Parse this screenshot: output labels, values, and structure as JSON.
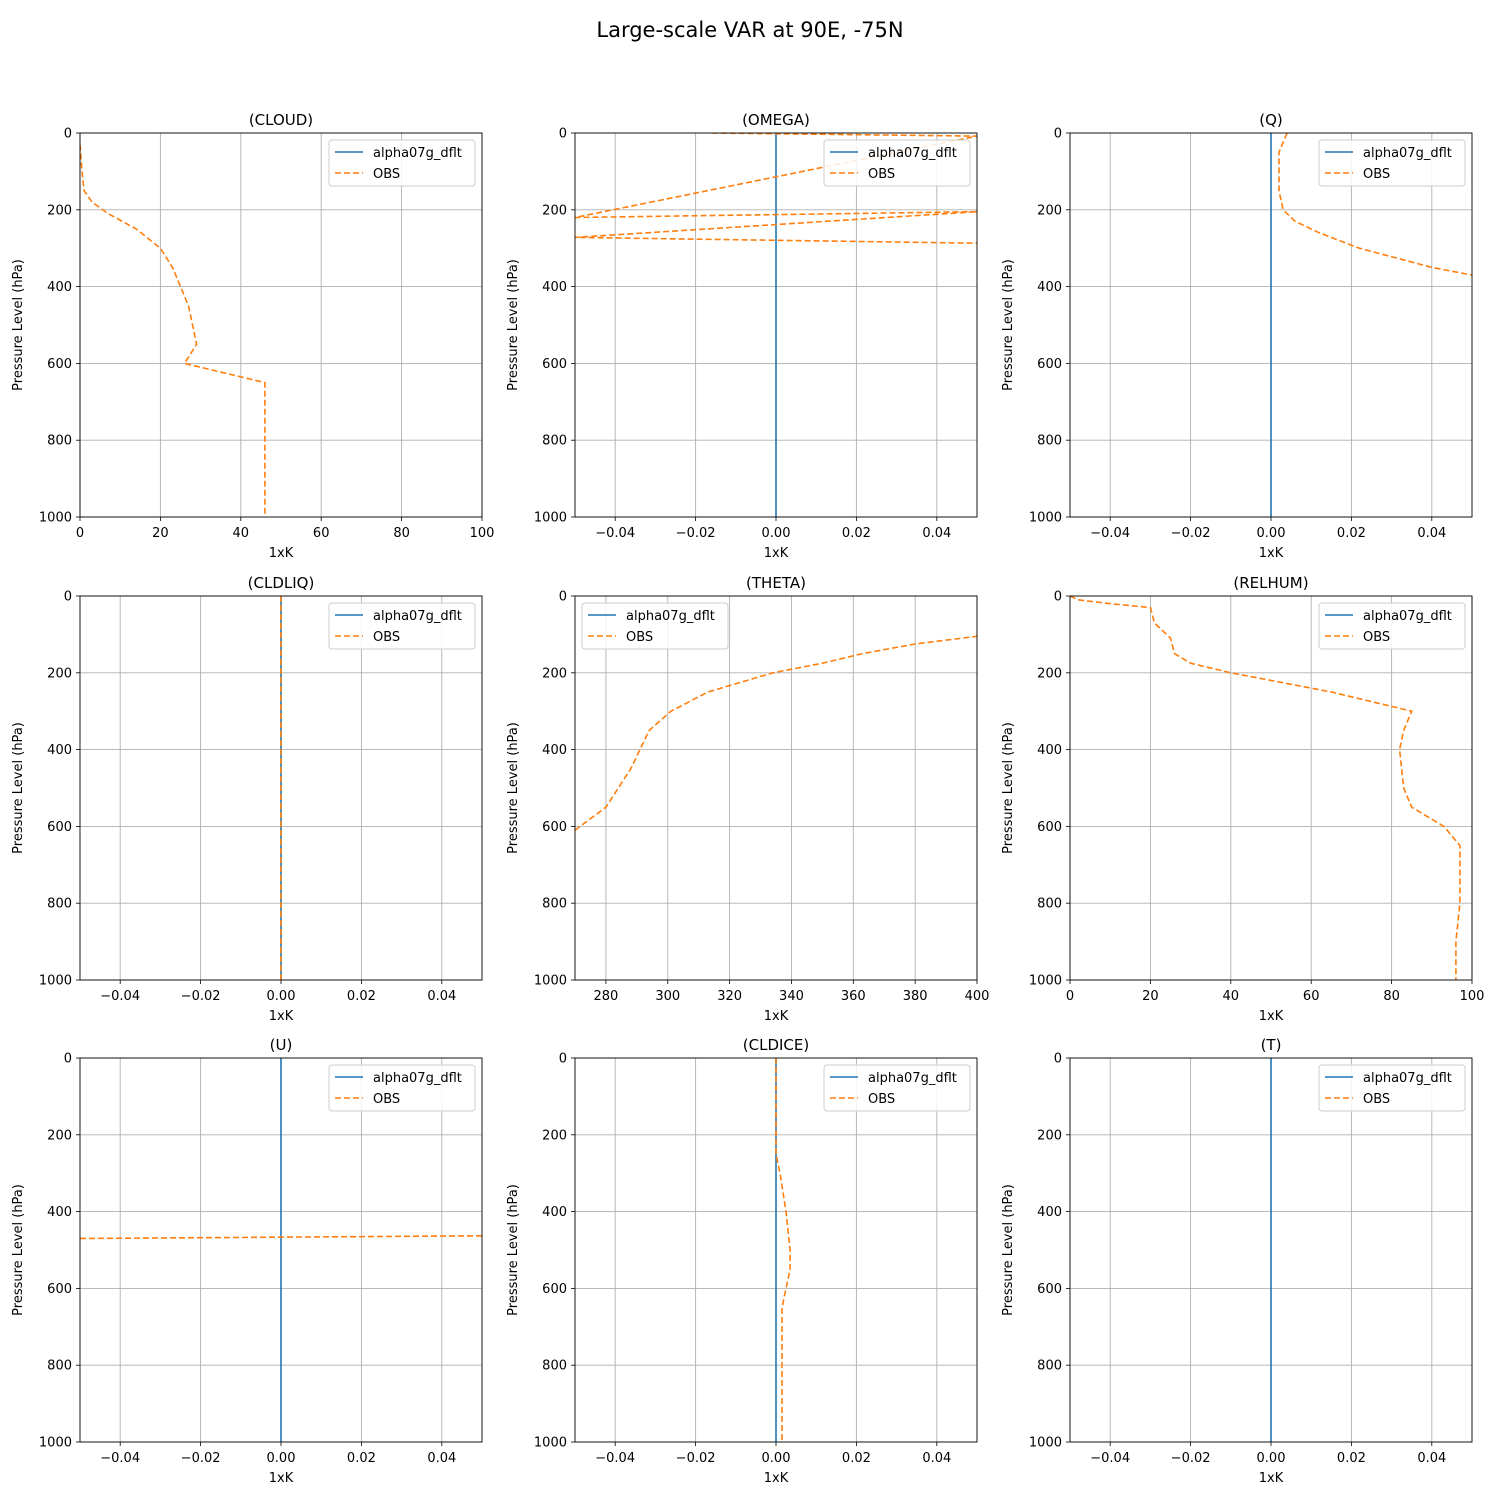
{
  "figure": {
    "suptitle": "Large-scale VAR at 90E, -75N",
    "colors": {
      "model": "#1f77b4",
      "obs": "#ff7f0e",
      "grid": "#b0b0b0"
    }
  },
  "chart_data": [
    {
      "type": "line",
      "title": "(CLOUD)",
      "xlabel": "1xK",
      "ylabel": "Pressure Level (hPa)",
      "xlim": [
        0,
        100
      ],
      "ylim": [
        1000,
        0
      ],
      "y_inverted": true,
      "grid": true,
      "legend": "top-right",
      "xticks": [
        "0",
        "20",
        "40",
        "60",
        "80",
        "100"
      ],
      "yticks": [
        "0",
        "200",
        "400",
        "600",
        "800",
        "1000"
      ],
      "series": [
        {
          "name": "OBS",
          "style": "dashed",
          "x": [
            0,
            0.5,
            1,
            3,
            7,
            14,
            20,
            23,
            27,
            29,
            26,
            46,
            46,
            46
          ],
          "y": [
            30,
            100,
            150,
            180,
            210,
            250,
            300,
            350,
            450,
            550,
            600,
            650,
            800,
            1000
          ]
        }
      ]
    },
    {
      "type": "line",
      "title": "(OMEGA)",
      "xlabel": "1xK",
      "ylabel": "Pressure Level (hPa)",
      "xlim": [
        -0.05,
        0.05
      ],
      "ylim": [
        1000,
        0
      ],
      "y_inverted": true,
      "grid": true,
      "legend": "top-right",
      "xticks": [
        "−0.04",
        "−0.02",
        "0.00",
        "0.02",
        "0.04"
      ],
      "yticks": [
        "0",
        "200",
        "400",
        "600",
        "800",
        "1000"
      ],
      "series": [
        {
          "name": "alpha07g_dflt",
          "style": "solid",
          "x": [
            0,
            0
          ],
          "y": [
            0,
            1000
          ]
        },
        {
          "name": "OBS",
          "style": "dashed",
          "x": [
            -0.016,
            0.05,
            -0.05,
            0.05,
            -0.05,
            0.05
          ],
          "y": [
            0,
            8,
            220,
            205,
            272,
            287
          ]
        }
      ]
    },
    {
      "type": "line",
      "title": "(Q)",
      "xlabel": "1xK",
      "ylabel": "Pressure Level (hPa)",
      "xlim": [
        -0.05,
        0.05
      ],
      "ylim": [
        1000,
        0
      ],
      "y_inverted": true,
      "grid": true,
      "legend": "top-right",
      "xticks": [
        "−0.04",
        "−0.02",
        "0.00",
        "0.02",
        "0.04"
      ],
      "yticks": [
        "0",
        "200",
        "400",
        "600",
        "800",
        "1000"
      ],
      "series": [
        {
          "name": "alpha07g_dflt",
          "style": "solid",
          "x": [
            0,
            0
          ],
          "y": [
            0,
            1000
          ]
        },
        {
          "name": "OBS",
          "style": "dashed",
          "x": [
            0.004,
            0.002,
            0.002,
            0.003,
            0.006,
            0.012,
            0.022,
            0.04,
            0.05
          ],
          "y": [
            0,
            50,
            150,
            200,
            230,
            260,
            300,
            350,
            370
          ]
        }
      ]
    },
    {
      "type": "line",
      "title": "(CLDLIQ)",
      "xlabel": "1xK",
      "ylabel": "Pressure Level (hPa)",
      "xlim": [
        -0.05,
        0.05
      ],
      "ylim": [
        1000,
        0
      ],
      "y_inverted": true,
      "grid": true,
      "legend": "top-right",
      "xticks": [
        "−0.04",
        "−0.02",
        "0.00",
        "0.02",
        "0.04"
      ],
      "yticks": [
        "0",
        "200",
        "400",
        "600",
        "800",
        "1000"
      ],
      "series": [
        {
          "name": "alpha07g_dflt",
          "style": "solid",
          "x": [
            0,
            0
          ],
          "y": [
            0,
            1000
          ]
        },
        {
          "name": "OBS",
          "style": "dashed",
          "x": [
            0,
            0
          ],
          "y": [
            0,
            1000
          ]
        }
      ]
    },
    {
      "type": "line",
      "title": "(THETA)",
      "xlabel": "1xK",
      "ylabel": "Pressure Level (hPa)",
      "xlim": [
        270,
        400
      ],
      "ylim": [
        1000,
        0
      ],
      "y_inverted": true,
      "grid": true,
      "legend": "top-left",
      "xticks": [
        "280",
        "300",
        "320",
        "340",
        "360",
        "380",
        "400"
      ],
      "yticks": [
        "0",
        "200",
        "400",
        "600",
        "800",
        "1000"
      ],
      "series": [
        {
          "name": "alpha07g_dflt",
          "style": "solid",
          "x": [],
          "y": []
        },
        {
          "name": "OBS",
          "style": "dashed",
          "x": [
            270,
            280,
            288,
            294,
            301,
            313,
            334,
            350,
            363,
            380,
            400
          ],
          "y": [
            610,
            550,
            450,
            350,
            300,
            250,
            200,
            175,
            150,
            125,
            105
          ]
        }
      ]
    },
    {
      "type": "line",
      "title": "(RELHUM)",
      "xlabel": "1xK",
      "ylabel": "Pressure Level (hPa)",
      "xlim": [
        0,
        100
      ],
      "ylim": [
        1000,
        0
      ],
      "y_inverted": true,
      "grid": true,
      "legend": "top-right",
      "xticks": [
        "0",
        "20",
        "40",
        "60",
        "80",
        "100"
      ],
      "yticks": [
        "0",
        "200",
        "400",
        "600",
        "800",
        "1000"
      ],
      "series": [
        {
          "name": "OBS",
          "style": "dashed",
          "x": [
            0,
            2,
            10,
            20,
            21,
            24,
            25,
            26,
            30,
            40,
            55,
            65,
            85,
            83,
            82,
            83,
            85,
            93,
            97,
            97,
            97,
            96,
            96
          ],
          "y": [
            0,
            10,
            20,
            30,
            70,
            100,
            110,
            150,
            175,
            200,
            230,
            250,
            300,
            350,
            400,
            500,
            550,
            600,
            650,
            700,
            800,
            900,
            1000
          ]
        }
      ]
    },
    {
      "type": "line",
      "title": "(U)",
      "xlabel": "1xK",
      "ylabel": "Pressure Level (hPa)",
      "xlim": [
        -0.05,
        0.05
      ],
      "ylim": [
        1000,
        0
      ],
      "y_inverted": true,
      "grid": true,
      "legend": "top-right",
      "xticks": [
        "−0.04",
        "−0.02",
        "0.00",
        "0.02",
        "0.04"
      ],
      "yticks": [
        "0",
        "200",
        "400",
        "600",
        "800",
        "1000"
      ],
      "series": [
        {
          "name": "alpha07g_dflt",
          "style": "solid",
          "x": [
            0,
            0
          ],
          "y": [
            0,
            1000
          ]
        },
        {
          "name": "OBS",
          "style": "dashed",
          "x": [
            -0.05,
            0.05
          ],
          "y": [
            470,
            463
          ]
        }
      ]
    },
    {
      "type": "line",
      "title": "(CLDICE)",
      "xlabel": "1xK",
      "ylabel": "Pressure Level (hPa)",
      "xlim": [
        -0.05,
        0.05
      ],
      "ylim": [
        1000,
        0
      ],
      "y_inverted": true,
      "grid": true,
      "legend": "top-right",
      "xticks": [
        "−0.04",
        "−0.02",
        "0.00",
        "0.02",
        "0.04"
      ],
      "yticks": [
        "0",
        "200",
        "400",
        "600",
        "800",
        "1000"
      ],
      "series": [
        {
          "name": "alpha07g_dflt",
          "style": "solid",
          "x": [
            0,
            0
          ],
          "y": [
            0,
            1000
          ]
        },
        {
          "name": "OBS",
          "style": "dashed",
          "x": [
            0,
            0,
            0,
            0.001,
            0.0025,
            0.0035,
            0.0035,
            0.0015,
            0.0015,
            0.0015
          ],
          "y": [
            0,
            100,
            250,
            300,
            400,
            500,
            550,
            650,
            800,
            1000
          ]
        }
      ]
    },
    {
      "type": "line",
      "title": "(T)",
      "xlabel": "1xK",
      "ylabel": "Pressure Level (hPa)",
      "xlim": [
        -0.05,
        0.05
      ],
      "ylim": [
        1000,
        0
      ],
      "y_inverted": true,
      "grid": true,
      "legend": "top-right",
      "xticks": [
        "−0.04",
        "−0.02",
        "0.00",
        "0.02",
        "0.04"
      ],
      "yticks": [
        "0",
        "200",
        "400",
        "600",
        "800",
        "1000"
      ],
      "series": [
        {
          "name": "alpha07g_dflt",
          "style": "solid",
          "x": [
            0,
            0
          ],
          "y": [
            0,
            1000
          ]
        },
        {
          "name": "OBS",
          "style": "dashed",
          "x": [],
          "y": []
        }
      ]
    }
  ],
  "legend_labels": [
    "alpha07g_dflt",
    "OBS"
  ]
}
